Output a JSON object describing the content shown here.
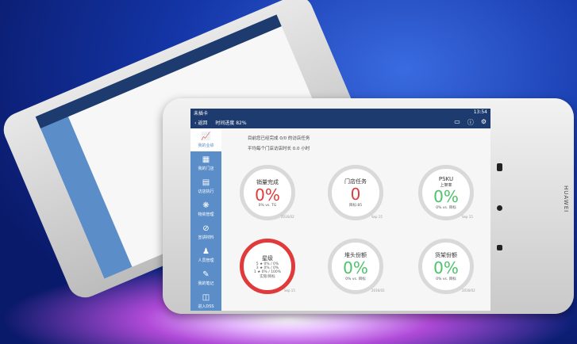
{
  "status": {
    "carrier": "未插卡",
    "time": "13:54"
  },
  "header": {
    "back": "返回",
    "progress": "时间进度 82%"
  },
  "brand": "HUAWEI",
  "sidebar": [
    {
      "label": "我的业绩",
      "icon": "chart-icon"
    },
    {
      "label": "我的门店",
      "icon": "store-icon"
    },
    {
      "label": "访店执行",
      "icon": "clipboard-icon"
    },
    {
      "label": "物资管理",
      "icon": "grid-icon"
    },
    {
      "label": "宣讲材料",
      "icon": "paperclip-icon"
    },
    {
      "label": "人员管理",
      "icon": "people-icon"
    },
    {
      "label": "我的笔记",
      "icon": "note-icon"
    },
    {
      "label": "进入DSS",
      "icon": "dss-icon"
    }
  ],
  "info": [
    "目前您已经完成 0/0 的访店任务",
    "平均每个门店访店时长 0.0 小时"
  ],
  "cards": [
    {
      "title": "销量完成",
      "value": "0%",
      "sub": "0% vs. TG",
      "date": "2016/02",
      "color": "#e03a3a"
    },
    {
      "title": "门店任务",
      "value": "0",
      "sub": "目标:85",
      "date": "Sep 15",
      "color": "#e03a3a"
    },
    {
      "title": "PSKU",
      "subtitle": "上架率",
      "value": "0%",
      "sub": "0% vs. 目标",
      "date": "Sep 15",
      "color": "#4cc36a"
    },
    {
      "title": "星级",
      "rows": [
        "5 ★ 0% / 0%",
        "3 ★ 0% / 0%",
        "1 ★ 0% / 100%"
      ],
      "sub": "实际/目标",
      "date": "Sep 15"
    },
    {
      "title": "堆头份额",
      "value": "0%",
      "sub": "0% vs. 目标",
      "date": "2016/02",
      "color": "#4cc36a"
    },
    {
      "title": "货架份额",
      "value": "0%",
      "sub": "0% vs. 目标",
      "date": "2016/02",
      "color": "#4cc36a"
    }
  ]
}
